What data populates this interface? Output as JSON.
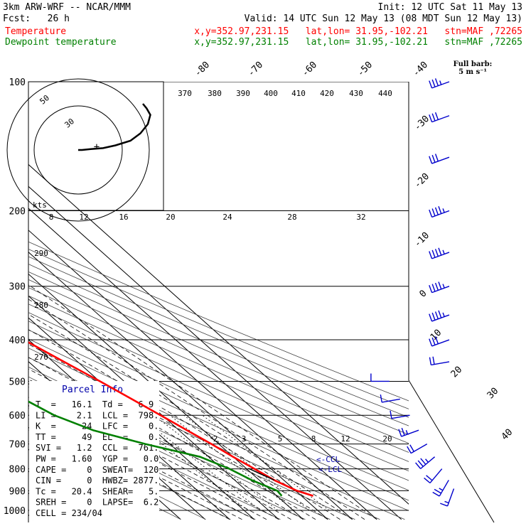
{
  "header": {
    "model": "3km ARW-WRF -- NCAR/MMM",
    "init": "Init: 12 UTC Sat 11 May 13",
    "fcst": "Fcst:   26 h",
    "valid": "Valid: 14 UTC Sun 12 May 13 (08 MDT Sun 12 May 13)",
    "temp_legend": "Temperature",
    "dewp_legend": "Dewpoint temperature",
    "temp_loc": "x,y=352.97,231.15   lat,lon= 31.95,-102.21   stn=MAF ,72265",
    "dewp_loc": "x,y=352.97,231.15   lat,lon= 31.95,-102.21   stn=MAF ,72265",
    "barb_key_1": "Full barb:",
    "barb_key_2": "5 m s⁻¹"
  },
  "colors": {
    "temperature": "#ff0000",
    "dewpoint": "#008000",
    "parcel": "#000000",
    "winds": "#0000cc",
    "index_panel_bg": "#ffffff"
  },
  "chart_data": {
    "type": "line",
    "title": "",
    "xlabel": "",
    "ylabel": "",
    "pressure_levels": [
      100,
      200,
      300,
      400,
      500,
      600,
      700,
      800,
      900,
      1000
    ],
    "pressure_tick_labels": [
      "100",
      "200",
      "300",
      "400",
      "500",
      "600",
      "700",
      "800",
      "900",
      "1000"
    ],
    "ylim_hPa": [
      100,
      1000
    ],
    "isotherm_labels": [
      "-80",
      "-70",
      "-60",
      "-50",
      "-40",
      "-30",
      "-20",
      "-10",
      "0",
      "10",
      "20",
      "30",
      "40"
    ],
    "theta_e_labels": [
      "370",
      "380",
      "390",
      "400",
      "410",
      "420",
      "430",
      "440"
    ],
    "theta_labels": [
      "290",
      "280",
      "270"
    ],
    "mixing_ratio_labels": [
      "2",
      "3",
      "5",
      "8",
      "12",
      "20"
    ],
    "hodograph": {
      "speed_units": "kts",
      "speed_tick_labels": [
        "8",
        "12",
        "16",
        "20",
        "24",
        "28",
        "32"
      ],
      "ring_labels": [
        "50",
        "30"
      ],
      "trace_u": [
        0,
        3,
        10,
        20,
        30,
        42,
        50,
        56,
        58,
        55,
        52
      ],
      "trace_v": [
        0,
        0,
        1,
        2,
        5,
        10,
        18,
        28,
        38,
        45,
        50
      ]
    },
    "series": [
      {
        "name": "Temperature",
        "color": "#ff0000",
        "pressure": [
          925,
          900,
          850,
          800,
          750,
          700,
          650,
          600,
          550,
          500,
          450,
          400,
          350,
          300,
          250,
          220,
          200,
          180,
          160,
          140,
          120,
          100
        ],
        "temperature_c": [
          24.8,
          20.5,
          16.1,
          13.2,
          10.0,
          7.0,
          3.3,
          -0.6,
          -5.0,
          -9.8,
          -15.6,
          -22.0,
          -29.5,
          -38.5,
          -48.6,
          -54.5,
          -57.8,
          -58.0,
          -58.8,
          -60.5,
          -62.5,
          -65.0
        ]
      },
      {
        "name": "Dewpoint temperature",
        "color": "#008000",
        "pressure": [
          925,
          900,
          850,
          800,
          750,
          700,
          650,
          600,
          550,
          500,
          450,
          400,
          350,
          300,
          250,
          220,
          200,
          180,
          160,
          140,
          120,
          100
        ],
        "temperature_c": [
          12.0,
          12.5,
          6.9,
          3.0,
          -3.5,
          -20.0,
          -35.0,
          -44.0,
          -49.0,
          -51.0,
          -44.0,
          -46.0,
          -49.0,
          -49.0,
          -57.0,
          -62.0,
          -71.5,
          -73.0,
          -75.0,
          -75.5,
          -76.5,
          -77.5
        ]
      }
    ],
    "wind_barbs": [
      {
        "pressure": 890,
        "speed_kt": 5,
        "dir_deg": 200
      },
      {
        "pressure": 850,
        "speed_kt": 15,
        "dir_deg": 210
      },
      {
        "pressure": 800,
        "speed_kt": 20,
        "dir_deg": 220
      },
      {
        "pressure": 750,
        "speed_kt": 25,
        "dir_deg": 230
      },
      {
        "pressure": 700,
        "speed_kt": 20,
        "dir_deg": 240
      },
      {
        "pressure": 650,
        "speed_kt": 15,
        "dir_deg": 250
      },
      {
        "pressure": 600,
        "speed_kt": 10,
        "dir_deg": 260
      },
      {
        "pressure": 550,
        "speed_kt": 10,
        "dir_deg": 260
      },
      {
        "pressure": 500,
        "speed_kt": 10,
        "dir_deg": 270
      },
      {
        "pressure": 450,
        "speed_kt": 20,
        "dir_deg": 260
      },
      {
        "pressure": 400,
        "speed_kt": 30,
        "dir_deg": 250
      },
      {
        "pressure": 350,
        "speed_kt": 35,
        "dir_deg": 250
      },
      {
        "pressure": 300,
        "speed_kt": 35,
        "dir_deg": 250
      },
      {
        "pressure": 250,
        "speed_kt": 35,
        "dir_deg": 250
      },
      {
        "pressure": 200,
        "speed_kt": 35,
        "dir_deg": 250
      },
      {
        "pressure": 150,
        "speed_kt": 30,
        "dir_deg": 250
      },
      {
        "pressure": 120,
        "speed_kt": 30,
        "dir_deg": 250
      },
      {
        "pressure": 100,
        "speed_kt": 25,
        "dir_deg": 250
      }
    ],
    "annotations": [
      "<-CCL",
      "<-LCL"
    ]
  },
  "indices": {
    "title": "Parcel Info",
    "rows": [
      "T  =   16.1  Td =   6.9",
      "LI =    2.1  LCL =  798.",
      "K  =     24  LFC =    0.",
      "TT =     49  EL  =    0.",
      "SVI =   1.2  CCL =  761.",
      "PW =   1.60  YGP =   0.0",
      "CAPE =    0  SWEAT=  120",
      "CIN =     0  HWBZ= 2877.",
      "Tc =   20.4  SHEAR=   5.",
      "SREH =    0  LAPSE=  6.2",
      "CELL = 234/04"
    ]
  }
}
